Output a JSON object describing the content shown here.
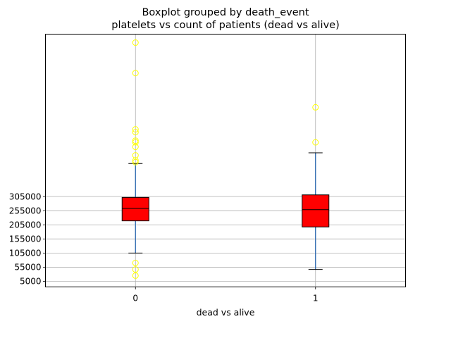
{
  "chart_data": {
    "type": "boxplot",
    "title": "Boxplot grouped by death_event",
    "subtitle": "platelets vs count of patients (dead vs alive)",
    "xlabel": "dead vs alive",
    "ylabel": "",
    "categories": [
      "0",
      "1"
    ],
    "ylim": [
      -15000,
      880000
    ],
    "yticks": [
      5000,
      55000,
      105000,
      155000,
      205000,
      255000,
      305000
    ],
    "ytick_labels": [
      "5000",
      "55000",
      "105000",
      "155000",
      "205000",
      "255000",
      "305000"
    ],
    "grid": true,
    "boxes": [
      {
        "category": "0",
        "whisker_low": 105000,
        "q1": 219000,
        "median": 263000,
        "q3": 302000,
        "whisker_high": 422000,
        "outliers": [
          25100,
          47000,
          70000,
          427000,
          433000,
          451000,
          481000,
          497000,
          503000,
          533000,
          543000,
          742000,
          850000
        ]
      },
      {
        "category": "1",
        "whisker_low": 47000,
        "q1": 197500,
        "median": 258500,
        "q3": 311000,
        "whisker_high": 460000,
        "outliers": [
          497000,
          621000
        ]
      }
    ],
    "colors": {
      "box_fill": "#ff0000",
      "box_edge": "#000000",
      "median": "#000000",
      "whisker": "#1f5fae",
      "cap": "#000000",
      "outlier": "#ffff00",
      "grid": "#b0b0b0"
    }
  }
}
